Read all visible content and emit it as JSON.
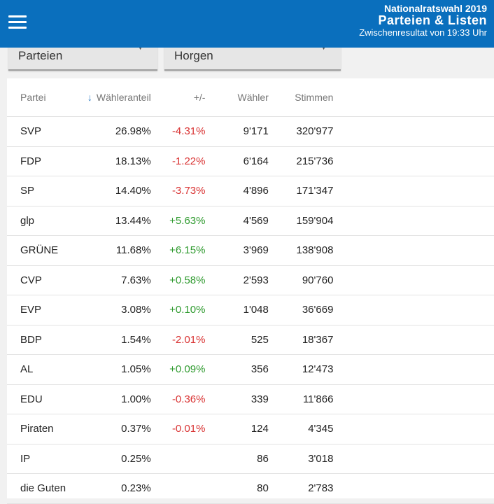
{
  "header": {
    "election": "Nationalratswahl 2019",
    "title": "Parteien & Listen",
    "status": "Zwischenresultat von 19:33 Uhr"
  },
  "filters": {
    "type_value": "Parteien",
    "region_value": "Horgen"
  },
  "table": {
    "headers": {
      "party": "Partei",
      "share": "Wähleranteil",
      "diff": "+/-",
      "voters": "Wähler",
      "votes": "Stimmen"
    },
    "rows": [
      {
        "party": "SVP",
        "share": "26.98%",
        "diff": "-4.31%",
        "voters": "9'171",
        "votes": "320'977"
      },
      {
        "party": "FDP",
        "share": "18.13%",
        "diff": "-1.22%",
        "voters": "6'164",
        "votes": "215'736"
      },
      {
        "party": "SP",
        "share": "14.40%",
        "diff": "-3.73%",
        "voters": "4'896",
        "votes": "171'347"
      },
      {
        "party": "glp",
        "share": "13.44%",
        "diff": "+5.63%",
        "voters": "4'569",
        "votes": "159'904"
      },
      {
        "party": "GRÜNE",
        "share": "11.68%",
        "diff": "+6.15%",
        "voters": "3'969",
        "votes": "138'908"
      },
      {
        "party": "CVP",
        "share": "7.63%",
        "diff": "+0.58%",
        "voters": "2'593",
        "votes": "90'760"
      },
      {
        "party": "EVP",
        "share": "3.08%",
        "diff": "+0.10%",
        "voters": "1'048",
        "votes": "36'669"
      },
      {
        "party": "BDP",
        "share": "1.54%",
        "diff": "-2.01%",
        "voters": "525",
        "votes": "18'367"
      },
      {
        "party": "AL",
        "share": "1.05%",
        "diff": "+0.09%",
        "voters": "356",
        "votes": "12'473"
      },
      {
        "party": "EDU",
        "share": "1.00%",
        "diff": "-0.36%",
        "voters": "339",
        "votes": "11'866"
      },
      {
        "party": "Piraten",
        "share": "0.37%",
        "diff": "-0.01%",
        "voters": "124",
        "votes": "4'345"
      },
      {
        "party": "IP",
        "share": "0.25%",
        "diff": "",
        "voters": "86",
        "votes": "3'018"
      },
      {
        "party": "die Guten",
        "share": "0.23%",
        "diff": "",
        "voters": "80",
        "votes": "2'783"
      }
    ]
  },
  "colors": {
    "brand": "#0a6fbd",
    "negative": "#d93333",
    "positive": "#2e9a2e",
    "sort_arrow": "#2f7fc6"
  }
}
